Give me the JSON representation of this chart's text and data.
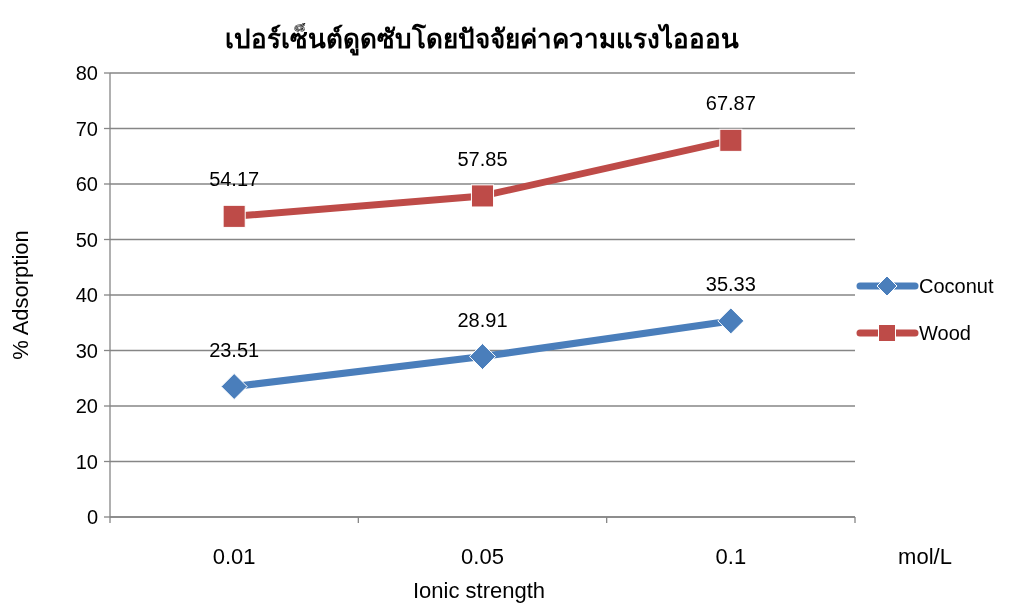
{
  "chart_data": {
    "type": "line",
    "title": "เปอร์เซ็นต์ดูดซับโดยปัจจัยค่าความแรงไอออน",
    "xlabel": "Ionic strength",
    "ylabel": "% Adsorption",
    "annotations": [
      "mol/L"
    ],
    "categories": [
      "0.01",
      "0.05",
      "0.1"
    ],
    "series": [
      {
        "name": "Coconut",
        "color": "#4a7ebb",
        "marker": "diamond",
        "values": [
          23.51,
          28.91,
          35.33
        ]
      },
      {
        "name": "Wood",
        "color": "#be4b48",
        "marker": "square",
        "values": [
          54.17,
          57.85,
          67.87
        ]
      }
    ],
    "ylim": [
      0,
      80
    ],
    "yticks": [
      0,
      10,
      20,
      30,
      40,
      50,
      60,
      70,
      80
    ],
    "grid": "y",
    "legend": "right",
    "data_labels": true
  }
}
